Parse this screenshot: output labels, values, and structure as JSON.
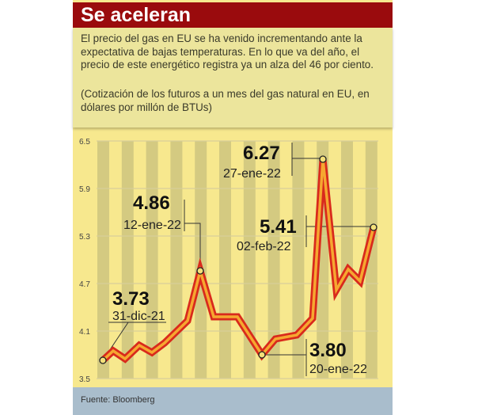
{
  "title": "Se aceleran",
  "description": "El precio del gas en EU se ha venido incrementando ante la expectativa de bajas temperaturas. En lo que va del año, el precio de este energético registra ya un alza del 46 por ciento.",
  "units_note": "(Cotización de los futuros a un mes del gas natural en EU, en dólares por millón de BTUs)",
  "source": "Fuente: Bloomberg",
  "colors": {
    "title_bar": "#9a0b0d",
    "chart_bg": "#f7e88e",
    "line_outer": "#d92a1c",
    "line_inner": "#f6a730",
    "footer": "#a9bdcc"
  },
  "chart_data": {
    "type": "line",
    "title": "Se aceleran",
    "ylim": [
      3.5,
      6.5
    ],
    "yticks": [
      "6.5",
      "5.9",
      "5.3",
      "4.7",
      "4.1",
      "3.5"
    ],
    "grid": true,
    "values": [
      3.73,
      3.85,
      3.75,
      3.92,
      3.83,
      3.95,
      4.23,
      4.86,
      4.28,
      4.28,
      3.8,
      4.0,
      4.05,
      4.26,
      6.27,
      4.62,
      4.88,
      4.73,
      5.41
    ],
    "annotations": [
      {
        "index": 0,
        "value": "3.73",
        "date": "31-dic-21"
      },
      {
        "index": 7,
        "value": "4.86",
        "date": "12-ene-22"
      },
      {
        "index": 14,
        "value": "6.27",
        "date": "27-ene-22"
      },
      {
        "index": 18,
        "value": "5.41",
        "date": "02-feb-22"
      },
      {
        "index": 10,
        "value": "3.80",
        "date": "20-ene-22"
      }
    ]
  }
}
